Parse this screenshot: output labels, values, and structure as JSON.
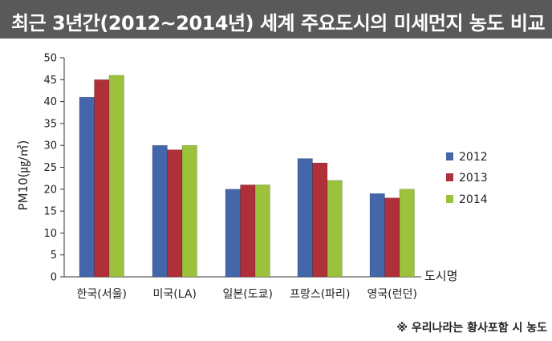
{
  "title": "최근 3년간(2012~2014년) 세계 주요도시의 미세먼지 농도 비교",
  "footnote": "※ 우리나라는 황사포함 시 농도",
  "colors": {
    "header_bg": "#595959",
    "series": [
      "#4466aa",
      "#b0303a",
      "#9bc23a"
    ]
  },
  "chart_data": {
    "type": "bar",
    "title": "최근 3년간(2012~2014년) 세계 주요도시의 미세먼지 농도 비교",
    "xlabel": "도시명",
    "ylabel": "PM10(㎍/㎥)",
    "ylim": [
      0,
      50
    ],
    "yticks": [
      0,
      5,
      10,
      15,
      20,
      25,
      30,
      35,
      40,
      45,
      50
    ],
    "grid": false,
    "legend_position": "right",
    "categories": [
      "한국(서울)",
      "미국(LA)",
      "일본(도쿄)",
      "프랑스(파리)",
      "영국(런던)"
    ],
    "series": [
      {
        "name": "2012",
        "values": [
          41,
          30,
          20,
          27,
          19
        ]
      },
      {
        "name": "2013",
        "values": [
          45,
          29,
          21,
          26,
          18
        ]
      },
      {
        "name": "2014",
        "values": [
          46,
          30,
          21,
          22,
          20
        ]
      }
    ]
  }
}
